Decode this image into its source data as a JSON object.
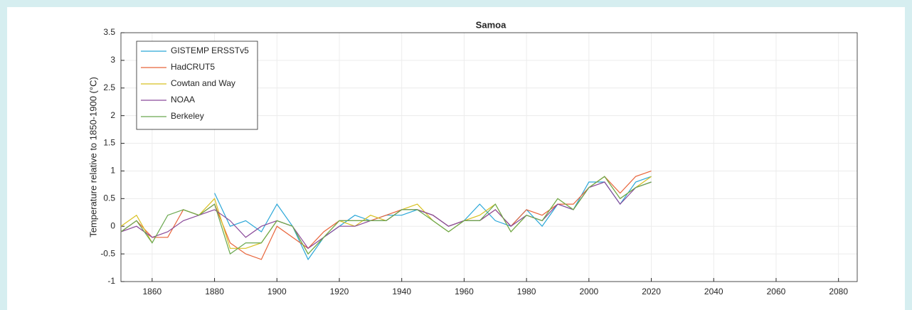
{
  "chart_data": {
    "type": "line",
    "title": "Samoa",
    "y_label": "Temperature relative to 1850-1900 (°C)",
    "x": [
      1850,
      1855,
      1860,
      1865,
      1870,
      1875,
      1880,
      1885,
      1890,
      1895,
      1900,
      1905,
      1910,
      1915,
      1920,
      1925,
      1930,
      1935,
      1940,
      1945,
      1950,
      1955,
      1960,
      1965,
      1970,
      1975,
      1980,
      1985,
      1990,
      1995,
      2000,
      2005,
      2010,
      2015,
      2020
    ],
    "series": [
      {
        "name": "GISTEMP ERSSTv5",
        "color": "#2aa7d8",
        "values": [
          null,
          null,
          null,
          null,
          null,
          null,
          0.6,
          0.0,
          0.1,
          -0.1,
          0.4,
          0.0,
          -0.6,
          -0.2,
          0.0,
          0.2,
          0.1,
          0.2,
          0.2,
          0.3,
          0.2,
          0.0,
          0.1,
          0.4,
          0.1,
          0.0,
          0.3,
          0.0,
          0.4,
          0.3,
          0.8,
          0.8,
          0.4,
          0.8,
          0.9
        ]
      },
      {
        "name": "HadCRUT5",
        "color": "#e8643a",
        "values": [
          -0.1,
          0.1,
          -0.2,
          -0.2,
          0.3,
          0.2,
          0.4,
          -0.3,
          -0.5,
          -0.6,
          0.0,
          -0.2,
          -0.4,
          -0.1,
          0.1,
          0.1,
          0.1,
          0.2,
          0.3,
          0.3,
          0.2,
          0.0,
          0.1,
          0.1,
          0.3,
          0.0,
          0.3,
          0.2,
          0.4,
          0.4,
          0.7,
          0.9,
          0.6,
          0.9,
          1.0
        ]
      },
      {
        "name": "Cowtan and Way",
        "color": "#d8c020",
        "values": [
          0.0,
          0.2,
          -0.3,
          null,
          0.3,
          0.2,
          0.5,
          -0.4,
          -0.4,
          -0.3,
          0.1,
          0.0,
          -0.5,
          -0.2,
          0.1,
          0.0,
          0.2,
          0.1,
          0.3,
          0.4,
          0.1,
          -0.1,
          0.1,
          0.2,
          0.4,
          -0.1,
          0.2,
          0.1,
          0.5,
          0.3,
          0.7,
          0.9,
          0.5,
          0.7,
          0.9
        ]
      },
      {
        "name": "NOAA",
        "color": "#8a4a9a",
        "values": [
          -0.1,
          0.0,
          -0.2,
          -0.1,
          0.1,
          0.2,
          0.3,
          0.1,
          -0.2,
          0.0,
          0.1,
          0.0,
          -0.4,
          -0.2,
          0.0,
          0.0,
          0.1,
          0.1,
          0.3,
          0.3,
          0.2,
          0.0,
          0.1,
          0.1,
          0.3,
          0.0,
          0.2,
          0.1,
          0.4,
          0.3,
          0.7,
          0.8,
          0.4,
          0.7,
          0.8
        ]
      },
      {
        "name": "Berkeley",
        "color": "#6aa84f",
        "values": [
          -0.1,
          0.1,
          -0.3,
          0.2,
          0.3,
          0.2,
          0.4,
          -0.5,
          -0.3,
          -0.3,
          0.1,
          0.0,
          -0.5,
          -0.2,
          0.1,
          0.1,
          0.1,
          0.1,
          0.3,
          0.3,
          0.1,
          -0.1,
          0.1,
          0.1,
          0.4,
          -0.1,
          0.2,
          0.1,
          0.5,
          0.3,
          0.7,
          0.9,
          0.5,
          0.7,
          0.8
        ]
      }
    ],
    "xlim": [
      1850,
      2086
    ],
    "xticks": [
      1860,
      1880,
      1900,
      1920,
      1940,
      1960,
      1980,
      2000,
      2020,
      2040,
      2060,
      2080
    ],
    "ylim": [
      -1,
      3.5
    ],
    "yticks": [
      -1,
      -0.5,
      0,
      0.5,
      1,
      1.5,
      2,
      2.5,
      3,
      3.5
    ],
    "grid": true,
    "legend": "top-left"
  }
}
